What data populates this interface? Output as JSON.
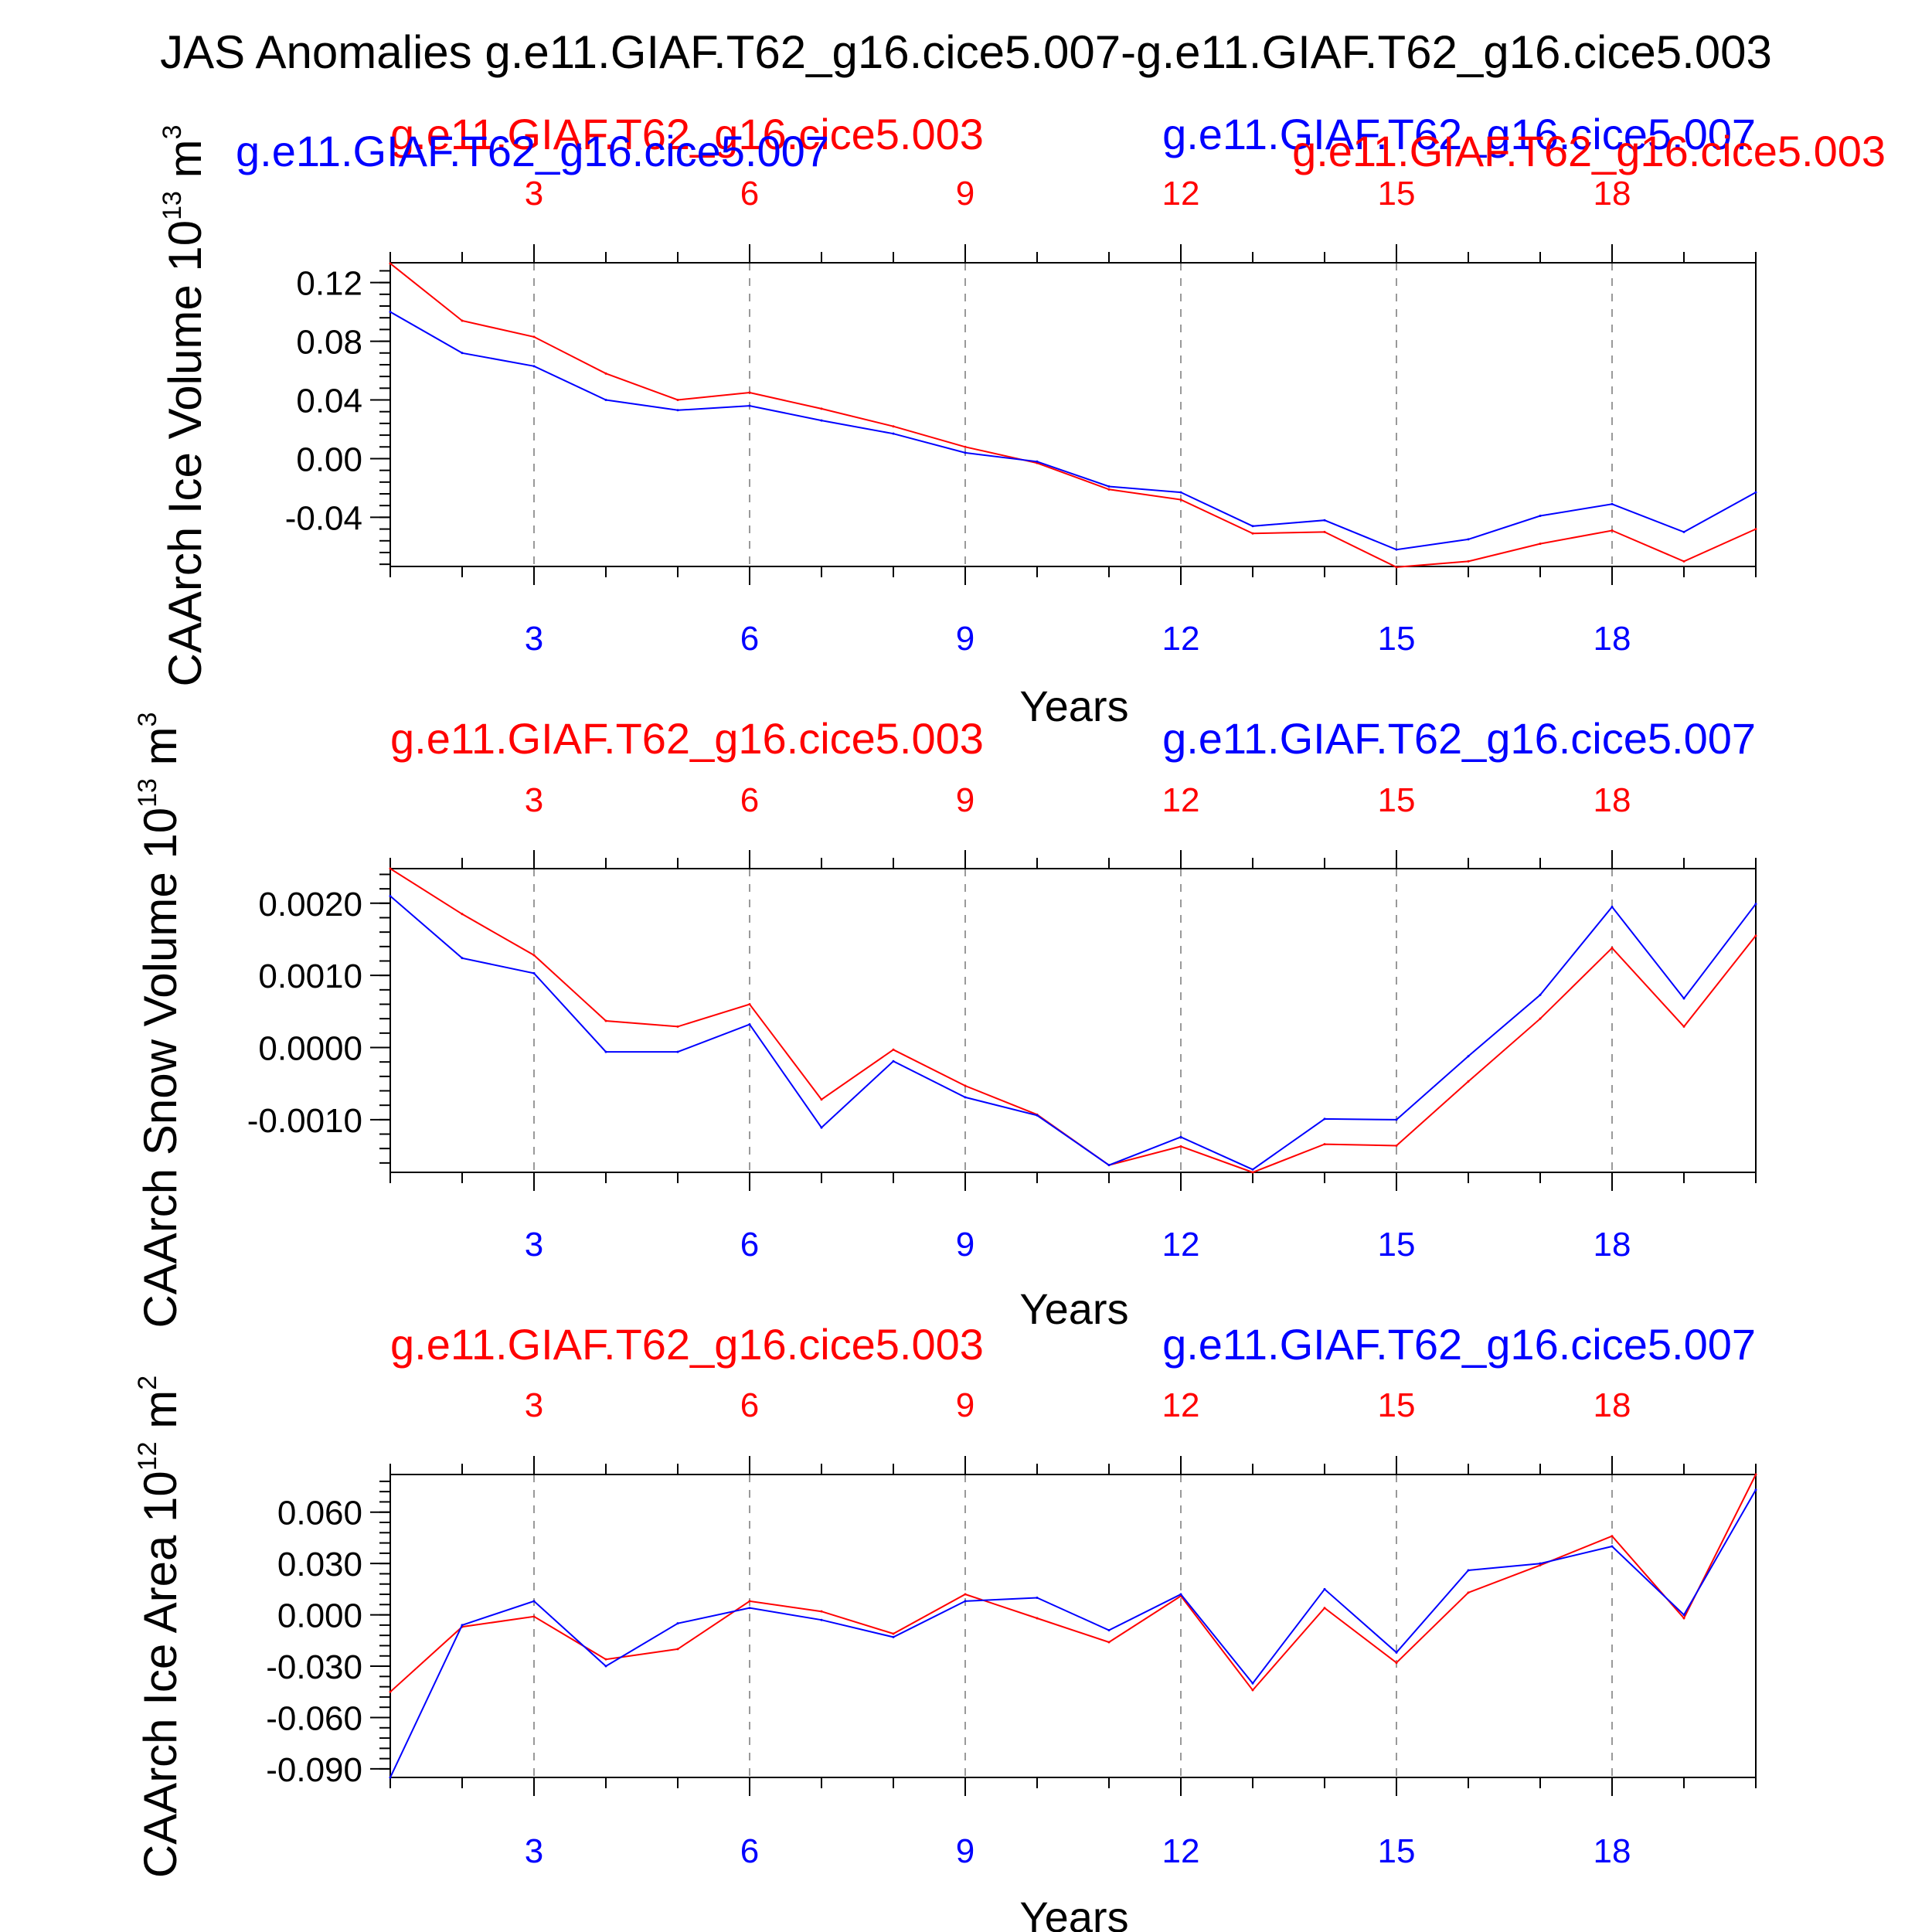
{
  "title": "JAS Anomalies g.e11.GIAF.T62_g16.cice5.007-g.e11.GIAF.T62_g16.cice5.003",
  "colors": {
    "red": "#ff0000",
    "blue": "#0000ff",
    "black": "#000000",
    "grid": "#999999"
  },
  "chart_data": [
    {
      "type": "line",
      "ylabel": "CAArch Ice Volume 10",
      "yunit_sup": "13",
      "yunit_tail": "m",
      "yunit_tail_sup": "3",
      "xlabel": "Years",
      "legend_red": "g.e11.GIAF.T62_g16.cice5.003",
      "legend_blue": "g.e11.GIAF.T62_g16.cice5.007",
      "legend_red_extra": "g.e11.GIAF.T62_g16.cice5.003",
      "legend_blue_extra": "g.e11.GIAF.T62_g16.cice5.007",
      "xlim": [
        1,
        20
      ],
      "ylim": [
        -0.0735,
        0.1335
      ],
      "yticks": [
        0.12,
        0.08,
        0.04,
        0.0,
        -0.04
      ],
      "ytick_labels": [
        "0.12",
        "0.08",
        "0.04",
        "0.00",
        "-0.04"
      ],
      "yminor_step": 0.008,
      "xticks": [
        3,
        6,
        9,
        12,
        15,
        18
      ],
      "xtick_labels": [
        "3",
        "6",
        "9",
        "12",
        "15",
        "18"
      ],
      "x": [
        1,
        2,
        3,
        4,
        5,
        6,
        7,
        8,
        9,
        10,
        11,
        12,
        13,
        14,
        15,
        16,
        17,
        18,
        19,
        20
      ],
      "series": [
        {
          "name": "g.e11.GIAF.T62_g16.cice5.003",
          "color": "red",
          "values": [
            0.133,
            0.094,
            0.083,
            0.058,
            0.04,
            0.045,
            0.034,
            0.022,
            0.008,
            -0.003,
            -0.021,
            -0.028,
            -0.051,
            -0.05,
            -0.074,
            -0.07,
            -0.058,
            -0.049,
            -0.07,
            -0.048
          ]
        },
        {
          "name": "g.e11.GIAF.T62_g16.cice5.007",
          "color": "blue",
          "values": [
            0.1,
            0.072,
            0.063,
            0.04,
            0.033,
            0.036,
            0.026,
            0.017,
            0.004,
            -0.002,
            -0.019,
            -0.023,
            -0.046,
            -0.042,
            -0.062,
            -0.055,
            -0.039,
            -0.031,
            -0.05,
            -0.023
          ]
        }
      ]
    },
    {
      "type": "line",
      "ylabel": "CAArch Snow Volume 10",
      "yunit_sup": "13",
      "yunit_tail": "m",
      "yunit_tail_sup": "3",
      "xlabel": "Years",
      "legend_red": "g.e11.GIAF.T62_g16.cice5.003",
      "legend_blue": "g.e11.GIAF.T62_g16.cice5.007",
      "xlim": [
        1,
        20
      ],
      "ylim": [
        -0.00173,
        0.00248
      ],
      "yticks": [
        0.002,
        0.001,
        0.0,
        -0.001
      ],
      "ytick_labels": [
        "0.0020",
        "0.0010",
        "0.0000",
        "-0.0010"
      ],
      "yminor_step": 0.0002,
      "xticks": [
        3,
        6,
        9,
        12,
        15,
        18
      ],
      "xtick_labels": [
        "3",
        "6",
        "9",
        "12",
        "15",
        "18"
      ],
      "x": [
        1,
        2,
        3,
        4,
        5,
        6,
        7,
        8,
        9,
        10,
        11,
        12,
        13,
        14,
        15,
        16,
        17,
        18,
        19,
        20
      ],
      "series": [
        {
          "name": "g.e11.GIAF.T62_g16.cice5.003",
          "color": "red",
          "values": [
            0.00248,
            0.00185,
            0.00128,
            0.00037,
            0.00029,
            0.0006,
            -0.00072,
            -3e-05,
            -0.00053,
            -0.00093,
            -0.00163,
            -0.00137,
            -0.00173,
            -0.00134,
            -0.00136,
            -0.00047,
            0.0004,
            0.00138,
            0.00029,
            0.00155
          ]
        },
        {
          "name": "g.e11.GIAF.T62_g16.cice5.007",
          "color": "blue",
          "values": [
            0.0021,
            0.00124,
            0.00103,
            -6e-05,
            -6e-05,
            0.00032,
            -0.00111,
            -0.00019,
            -0.00069,
            -0.00094,
            -0.00163,
            -0.00124,
            -0.00169,
            -0.00099,
            -0.001,
            -0.00012,
            0.00073,
            0.00195,
            0.00068,
            0.00199
          ]
        }
      ]
    },
    {
      "type": "line",
      "ylabel": "CAArch Ice Area 10",
      "yunit_sup": "12",
      "yunit_tail": "m",
      "yunit_tail_sup": "2",
      "xlabel": "Years",
      "legend_red": "g.e11.GIAF.T62_g16.cice5.003",
      "legend_blue": "g.e11.GIAF.T62_g16.cice5.007",
      "xlim": [
        1,
        20
      ],
      "ylim": [
        -0.095,
        0.082
      ],
      "yticks": [
        0.06,
        0.03,
        0.0,
        -0.03,
        -0.06,
        -0.09
      ],
      "ytick_labels": [
        "0.060",
        "0.030",
        "0.000",
        "-0.030",
        "-0.060",
        "-0.090"
      ],
      "yminor_step": 0.006,
      "xticks": [
        3,
        6,
        9,
        12,
        15,
        18
      ],
      "xtick_labels": [
        "3",
        "6",
        "9",
        "12",
        "15",
        "18"
      ],
      "x": [
        1,
        2,
        3,
        4,
        5,
        6,
        7,
        8,
        9,
        10,
        11,
        12,
        13,
        14,
        15,
        16,
        17,
        18,
        19,
        20
      ],
      "series": [
        {
          "name": "g.e11.GIAF.T62_g16.cice5.003",
          "color": "red",
          "values": [
            -0.045,
            -0.007,
            -0.001,
            -0.026,
            -0.02,
            0.008,
            0.002,
            -0.011,
            0.012,
            -0.002,
            -0.016,
            0.011,
            -0.044,
            0.004,
            -0.028,
            0.013,
            0.029,
            0.046,
            -0.002,
            0.082
          ]
        },
        {
          "name": "g.e11.GIAF.T62_g16.cice5.007",
          "color": "blue",
          "values": [
            -0.095,
            -0.006,
            0.008,
            -0.03,
            -0.005,
            0.004,
            -0.003,
            -0.013,
            0.008,
            0.01,
            -0.009,
            0.012,
            -0.04,
            0.015,
            -0.022,
            0.026,
            0.03,
            0.04,
            0.0,
            0.073
          ]
        }
      ]
    }
  ]
}
